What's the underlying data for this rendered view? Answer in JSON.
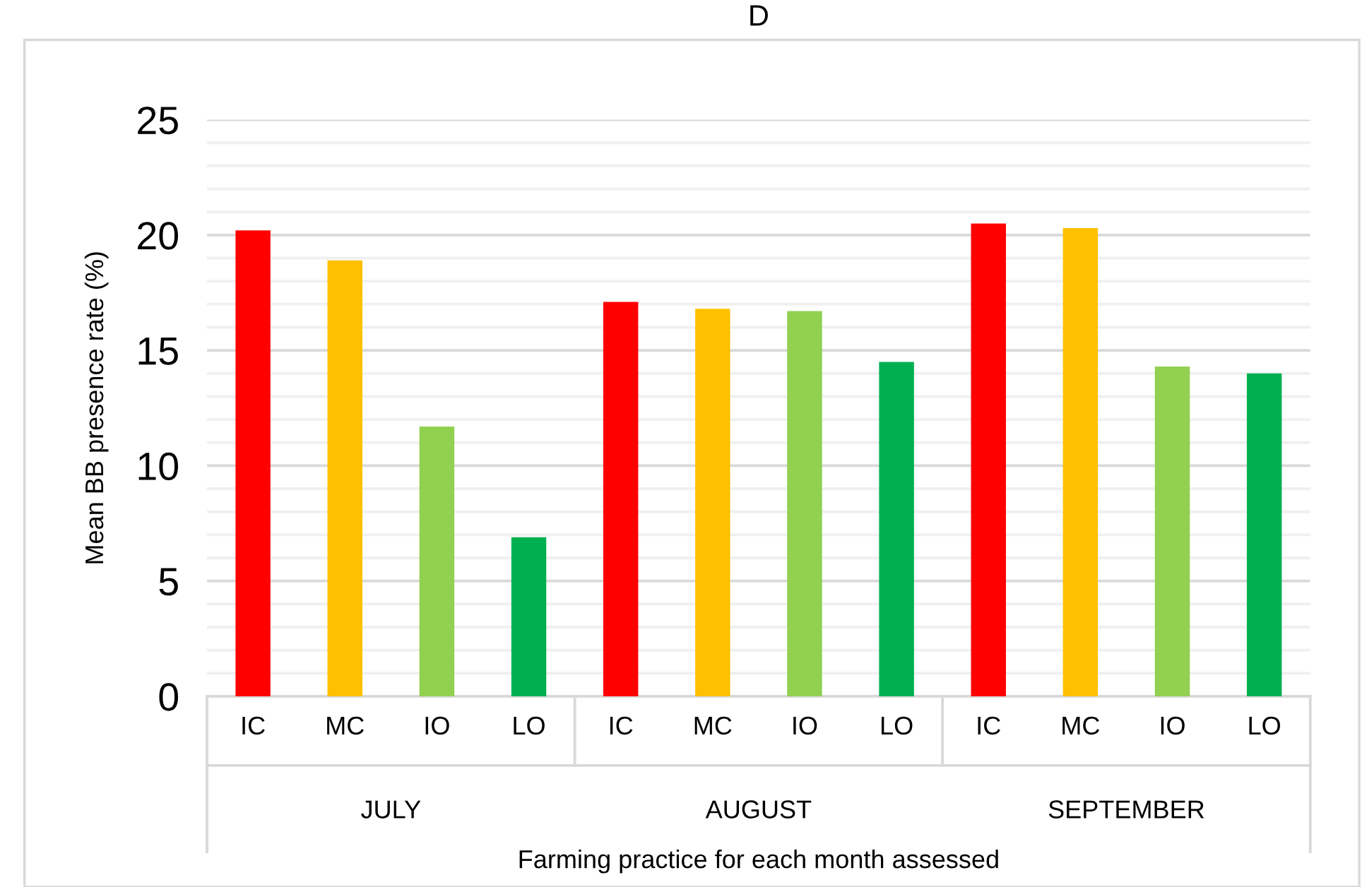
{
  "chart_data": {
    "type": "bar",
    "title": "D",
    "xlabel": "Farming practice for each month assessed",
    "ylabel": "Mean BB presence rate (%)",
    "categories": [
      "IC",
      "MC",
      "IO",
      "LO",
      "IC",
      "MC",
      "IO",
      "LO",
      "IC",
      "MC",
      "IO",
      "LO"
    ],
    "values": [
      20.2,
      18.9,
      11.7,
      6.9,
      17.1,
      16.8,
      16.7,
      14.5,
      20.5,
      20.3,
      14.3,
      14.0
    ],
    "colors": [
      "#ff0000",
      "#ffc000",
      "#92d050",
      "#00b050",
      "#ff0000",
      "#ffc000",
      "#92d050",
      "#00b050",
      "#ff0000",
      "#ffc000",
      "#92d050",
      "#00b050"
    ],
    "annotations": [
      "JULY",
      "AUGUST",
      "SEPTEMBER"
    ],
    "ylim": [
      0,
      25
    ],
    "yticks": [
      0,
      {
        "value": 1,
        "label": null
      },
      {
        "value": 2,
        "label": null
      },
      {
        "value": 3,
        "label": null
      },
      {
        "value": 4,
        "label": null
      },
      5,
      {
        "value": 6,
        "label": null
      },
      {
        "value": 7,
        "label": null
      },
      {
        "value": 8,
        "label": null
      },
      {
        "value": 9,
        "label": null
      },
      10,
      {
        "value": 11,
        "label": null
      },
      {
        "value": 12,
        "label": null
      },
      {
        "value": 13,
        "label": null
      },
      {
        "value": 14,
        "label": null
      },
      15,
      {
        "value": 16,
        "label": null
      },
      {
        "value": 17,
        "label": null
      },
      {
        "value": 18,
        "label": null
      },
      {
        "value": 19,
        "label": null
      },
      20,
      {
        "value": 21,
        "label": null
      },
      {
        "value": 22,
        "label": null
      },
      {
        "value": 23,
        "label": null
      },
      {
        "value": 24,
        "label": null
      },
      25
    ],
    "grid": "y"
  }
}
